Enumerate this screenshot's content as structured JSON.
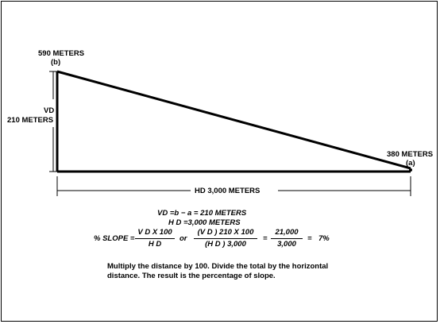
{
  "diagram": {
    "point_b_elevation": "590  METERS",
    "point_b_label": "(b)",
    "point_a_elevation": "380  METERS",
    "point_a_label": "(a)",
    "vd_label": "VD",
    "vd_value": "210 METERS",
    "hd_label": "HD 3,000 METERS"
  },
  "equations": {
    "line1": "VD   =b   − a  =  210  METERS",
    "line2": "H D   =3,000 METERS",
    "slope_label": "% SLOPE  =",
    "frac1_num": "V D X  100",
    "frac1_den": "H D",
    "or": "or",
    "frac2_num": "(V D  )  210  X  100",
    "frac2_den": "(H D  )    3,000",
    "eq_sign_1": "=",
    "frac3_num": "21,000",
    "frac3_den": "3,000",
    "eq_sign_2": "=",
    "result": "7%"
  },
  "note": "Multiply the distance by 100.  Divide the total by the horizontal distance. The result is the percentage of slope."
}
